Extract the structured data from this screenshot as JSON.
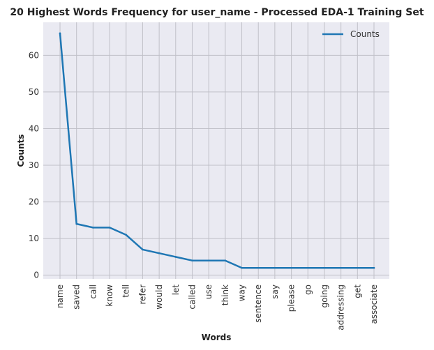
{
  "chart_data": {
    "type": "line",
    "title": "20 Highest Words Frequency for user_name - Processed EDA-1 Training Set",
    "xlabel": "Words",
    "ylabel": "Counts",
    "categories": [
      "name",
      "saved",
      "call",
      "know",
      "tell",
      "refer",
      "would",
      "let",
      "called",
      "use",
      "think",
      "way",
      "sentence",
      "say",
      "please",
      "go",
      "going",
      "addressing",
      "get",
      "associate"
    ],
    "series": [
      {
        "name": "Counts",
        "color": "#1f77b4",
        "values": [
          66,
          14,
          13,
          13,
          11,
          7,
          6,
          5,
          4,
          4,
          4,
          2,
          2,
          2,
          2,
          2,
          2,
          2,
          2,
          2
        ]
      }
    ],
    "ylim": [
      -1,
      69
    ],
    "yticks": [
      0,
      10,
      20,
      30,
      40,
      50,
      60
    ],
    "grid": true,
    "legend_position": "top-right",
    "colors": {
      "plot_background": "#eaeaf2",
      "grid": "#c0c0c8",
      "line": "#1f77b4"
    }
  }
}
